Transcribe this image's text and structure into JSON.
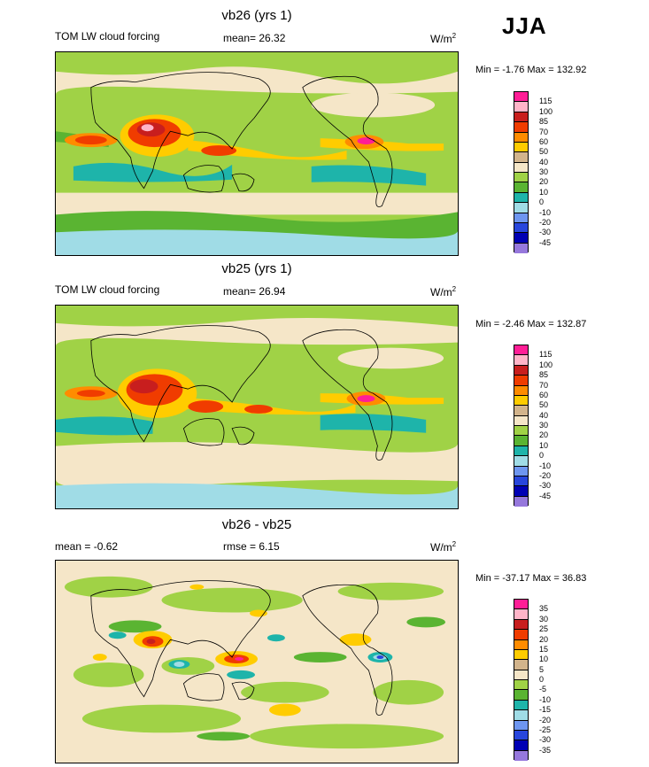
{
  "season": "JJA",
  "units": {
    "base": "W/m",
    "sup": "2"
  },
  "panels": [
    {
      "title": "vb26 (yrs 1)",
      "left_label": "TOM LW cloud forcing",
      "stat_label": "mean=",
      "stat_value": "26.32",
      "minmax": "Min =  -1.76 Max = 132.92",
      "colorbar": {
        "labels": [
          "115",
          "100",
          "85",
          "70",
          "60",
          "50",
          "40",
          "30",
          "20",
          "10",
          "0",
          "-10",
          "-20",
          "-30",
          "-45"
        ],
        "colors": [
          "#ff1e96",
          "#ffb4c8",
          "#c81e1e",
          "#f03c00",
          "#ff8c00",
          "#ffcc00",
          "#d2b48c",
          "#f5e6c8",
          "#a0d246",
          "#5ab432",
          "#1eb4aa",
          "#a0dce6",
          "#6e96f0",
          "#2846dc",
          "#0000b4",
          "#9678dc"
        ]
      }
    },
    {
      "title": "vb25 (yrs 1)",
      "left_label": "TOM LW cloud forcing",
      "stat_label": "mean=",
      "stat_value": "26.94",
      "minmax": "Min =  -2.46 Max = 132.87",
      "colorbar": {
        "labels": [
          "115",
          "100",
          "85",
          "70",
          "60",
          "50",
          "40",
          "30",
          "20",
          "10",
          "0",
          "-10",
          "-20",
          "-30",
          "-45"
        ],
        "colors": [
          "#ff1e96",
          "#ffb4c8",
          "#c81e1e",
          "#f03c00",
          "#ff8c00",
          "#ffcc00",
          "#d2b48c",
          "#f5e6c8",
          "#a0d246",
          "#5ab432",
          "#1eb4aa",
          "#a0dce6",
          "#6e96f0",
          "#2846dc",
          "#0000b4",
          "#9678dc"
        ]
      }
    },
    {
      "title": "vb26 - vb25",
      "left_label": "mean =  -0.62",
      "stat_label": "rmse =",
      "stat_value": "6.15",
      "minmax": "Min = -37.17 Max =  36.83",
      "colorbar": {
        "labels": [
          "35",
          "30",
          "25",
          "20",
          "15",
          "10",
          "5",
          "0",
          "-5",
          "-10",
          "-15",
          "-20",
          "-25",
          "-30",
          "-35"
        ],
        "colors": [
          "#ff1e96",
          "#ffb4c8",
          "#c81e1e",
          "#f03c00",
          "#ff8c00",
          "#ffcc00",
          "#d2b48c",
          "#f5e6c8",
          "#a0d246",
          "#5ab432",
          "#1eb4aa",
          "#a0dce6",
          "#6e96f0",
          "#2846dc",
          "#0000b4",
          "#9678dc"
        ]
      }
    }
  ]
}
